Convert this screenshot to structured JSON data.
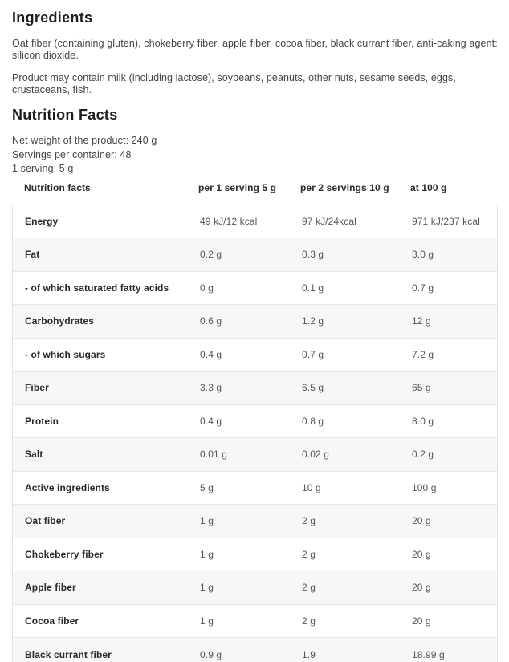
{
  "page": {
    "ingredients_title": "Ingredients",
    "ingredients_text": "Oat fiber (containing gluten), chokeberry fiber, apple fiber, cocoa fiber, black currant fiber, anti-caking agent: silicon dioxide.",
    "allergen_text": "Product may contain milk (including lactose), soybeans, peanuts, other nuts, sesame seeds, eggs, crustaceans, fish.",
    "nutrition_title": "Nutrition Facts",
    "net_weight": "Net weight of the product: 240 g",
    "servings_per_container": "Servings per container: 48",
    "serving_size": "1 serving: 5 g"
  },
  "table": {
    "headers": [
      "Nutrition facts",
      "per 1 serving 5 g",
      "per 2 servings 10 g",
      "at 100 g"
    ],
    "rows": [
      {
        "label": "Energy",
        "per_serving": "49 kJ/12 kcal",
        "per_2_servings": "97 kJ/24kcal",
        "at_100g": "971 kJ/237 kcal"
      },
      {
        "label": "Fat",
        "per_serving": "0.2 g",
        "per_2_servings": "0.3 g",
        "at_100g": "3.0 g"
      },
      {
        "label": "- of which saturated fatty acids",
        "per_serving": "0 g",
        "per_2_servings": "0.1 g",
        "at_100g": "0.7 g"
      },
      {
        "label": "Carbohydrates",
        "per_serving": "0.6 g",
        "per_2_servings": "1.2 g",
        "at_100g": "12 g"
      },
      {
        "label": "- of which sugars",
        "per_serving": "0.4 g",
        "per_2_servings": "0.7 g",
        "at_100g": "7.2 g"
      },
      {
        "label": "Fiber",
        "per_serving": "3.3 g",
        "per_2_servings": "6.5 g",
        "at_100g": "65 g"
      },
      {
        "label": "Protein",
        "per_serving": "0.4 g",
        "per_2_servings": "0.8 g",
        "at_100g": "8.0 g"
      },
      {
        "label": "Salt",
        "per_serving": "0.01 g",
        "per_2_servings": "0.02 g",
        "at_100g": "0.2 g"
      },
      {
        "label": "Active ingredients",
        "per_serving": "5 g",
        "per_2_servings": "10 g",
        "at_100g": "100 g"
      },
      {
        "label": "Oat fiber",
        "per_serving": "1 g",
        "per_2_servings": "2 g",
        "at_100g": "20 g"
      },
      {
        "label": "Chokeberry fiber",
        "per_serving": "1 g",
        "per_2_servings": "2 g",
        "at_100g": "20 g"
      },
      {
        "label": "Apple fiber",
        "per_serving": "1 g",
        "per_2_servings": "2 g",
        "at_100g": "20 g"
      },
      {
        "label": "Cocoa fiber",
        "per_serving": "1 g",
        "per_2_servings": "2 g",
        "at_100g": "20 g"
      },
      {
        "label": "Black currant fiber",
        "per_serving": "0.9 g",
        "per_2_servings": "1.9",
        "at_100g": "18.99 g"
      }
    ]
  },
  "colors": {
    "heading_text": "#1d1d1f",
    "body_text": "#454549",
    "label_text": "#29292c",
    "value_text": "#56565b",
    "row_alt_bg": "#f7f7f8",
    "border": "#e3e3e5"
  }
}
